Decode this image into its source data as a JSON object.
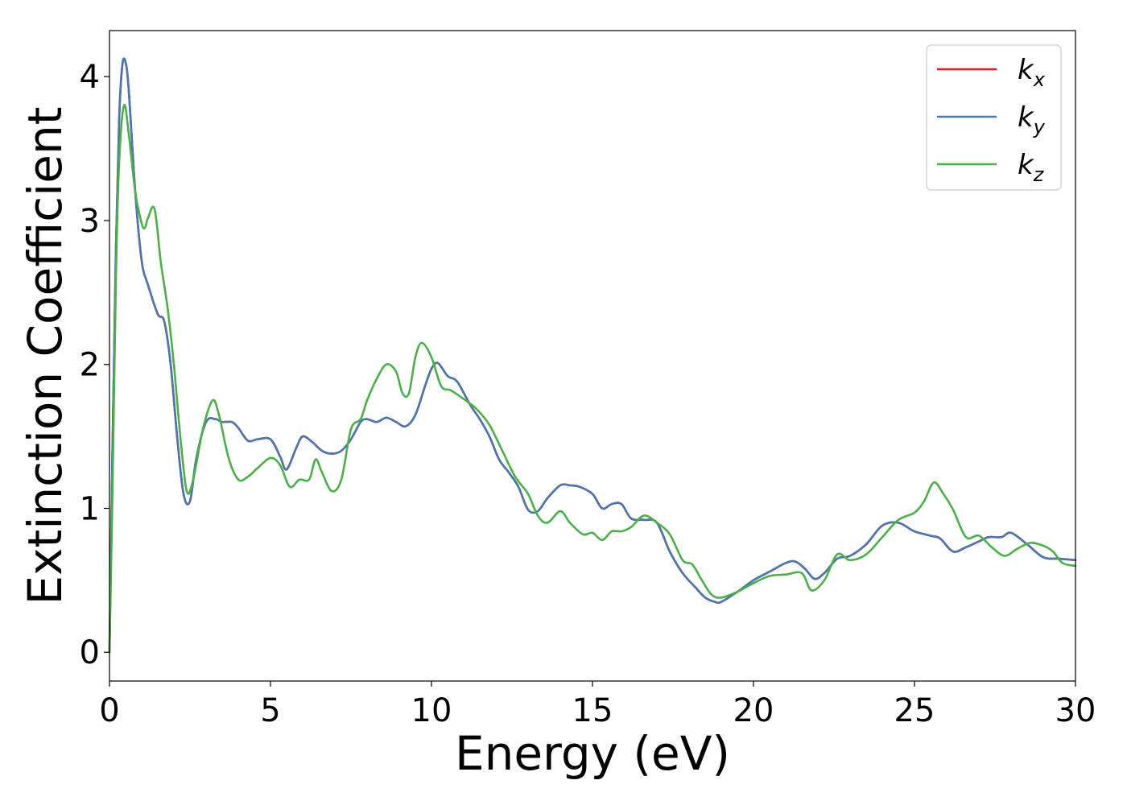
{
  "chart_data": {
    "type": "line",
    "xlabel": "Energy (eV)",
    "ylabel": "Extinction Coefficient",
    "xlim": [
      0,
      30
    ],
    "ylim": [
      -0.2,
      4.32
    ],
    "x_ticks": [
      0,
      5,
      10,
      15,
      20,
      25,
      30
    ],
    "y_ticks": [
      0,
      1,
      2,
      3,
      4
    ],
    "legend_position": "top-right",
    "grid": false,
    "series": [
      {
        "name": "k_x",
        "name_base": "k",
        "name_sub": "x",
        "color": "#e41a1c",
        "x": [
          0,
          0.1,
          0.2,
          0.3,
          0.4,
          0.5,
          0.6,
          0.8,
          1.0,
          1.2,
          1.5,
          1.7,
          1.9,
          2.1,
          2.3,
          2.5,
          2.7,
          3.0,
          3.3,
          3.5,
          3.8,
          4.0,
          4.3,
          4.6,
          5.0,
          5.3,
          5.5,
          5.8,
          6.0,
          6.3,
          6.6,
          6.9,
          7.2,
          7.5,
          7.8,
          8.0,
          8.3,
          8.6,
          8.9,
          9.2,
          9.5,
          9.8,
          10.0,
          10.2,
          10.5,
          10.8,
          11.2,
          11.5,
          11.8,
          12.1,
          12.4,
          12.7,
          13.0,
          13.3,
          13.6,
          14.0,
          14.3,
          14.6,
          15.0,
          15.3,
          15.6,
          15.9,
          16.2,
          16.6,
          17.0,
          17.4,
          17.8,
          18.2,
          18.5,
          18.8,
          19.0,
          19.5,
          20.0,
          20.5,
          21.0,
          21.3,
          21.6,
          21.9,
          22.2,
          22.6,
          23.0,
          23.5,
          24.0,
          24.5,
          25.0,
          25.5,
          25.8,
          26.2,
          26.6,
          27.0,
          27.3,
          27.7,
          28.0,
          28.5,
          29.0,
          29.5,
          30.0
        ],
        "y": [
          0,
          1.5,
          2.8,
          3.7,
          4.08,
          4.1,
          3.9,
          3.2,
          2.72,
          2.55,
          2.35,
          2.3,
          2.0,
          1.5,
          1.1,
          1.05,
          1.35,
          1.6,
          1.62,
          1.6,
          1.6,
          1.56,
          1.47,
          1.48,
          1.48,
          1.36,
          1.27,
          1.42,
          1.5,
          1.46,
          1.4,
          1.38,
          1.4,
          1.48,
          1.6,
          1.62,
          1.6,
          1.63,
          1.6,
          1.57,
          1.65,
          1.85,
          1.97,
          2.01,
          1.92,
          1.88,
          1.72,
          1.62,
          1.5,
          1.34,
          1.25,
          1.15,
          0.99,
          0.98,
          1.07,
          1.16,
          1.16,
          1.15,
          1.1,
          1.0,
          1.03,
          1.03,
          0.93,
          0.92,
          0.9,
          0.7,
          0.55,
          0.45,
          0.38,
          0.35,
          0.35,
          0.42,
          0.5,
          0.56,
          0.62,
          0.63,
          0.58,
          0.51,
          0.55,
          0.65,
          0.67,
          0.75,
          0.88,
          0.9,
          0.84,
          0.81,
          0.79,
          0.7,
          0.73,
          0.77,
          0.8,
          0.8,
          0.83,
          0.75,
          0.66,
          0.65,
          0.64
        ]
      },
      {
        "name": "k_y",
        "name_base": "k",
        "name_sub": "y",
        "color": "#4a78ae",
        "x": [
          0,
          0.1,
          0.2,
          0.3,
          0.4,
          0.5,
          0.6,
          0.8,
          1.0,
          1.2,
          1.5,
          1.7,
          1.9,
          2.1,
          2.3,
          2.5,
          2.7,
          3.0,
          3.3,
          3.5,
          3.8,
          4.0,
          4.3,
          4.6,
          5.0,
          5.3,
          5.5,
          5.8,
          6.0,
          6.3,
          6.6,
          6.9,
          7.2,
          7.5,
          7.8,
          8.0,
          8.3,
          8.6,
          8.9,
          9.2,
          9.5,
          9.8,
          10.0,
          10.2,
          10.5,
          10.8,
          11.2,
          11.5,
          11.8,
          12.1,
          12.4,
          12.7,
          13.0,
          13.3,
          13.6,
          14.0,
          14.3,
          14.6,
          15.0,
          15.3,
          15.6,
          15.9,
          16.2,
          16.6,
          17.0,
          17.4,
          17.8,
          18.2,
          18.5,
          18.8,
          19.0,
          19.5,
          20.0,
          20.5,
          21.0,
          21.3,
          21.6,
          21.9,
          22.2,
          22.6,
          23.0,
          23.5,
          24.0,
          24.5,
          25.0,
          25.5,
          25.8,
          26.2,
          26.6,
          27.0,
          27.3,
          27.7,
          28.0,
          28.5,
          29.0,
          29.5,
          30.0
        ],
        "y": [
          0,
          1.5,
          2.8,
          3.7,
          4.08,
          4.1,
          3.9,
          3.2,
          2.72,
          2.55,
          2.35,
          2.3,
          2.0,
          1.5,
          1.1,
          1.05,
          1.35,
          1.6,
          1.62,
          1.6,
          1.6,
          1.56,
          1.47,
          1.48,
          1.48,
          1.36,
          1.27,
          1.42,
          1.5,
          1.46,
          1.4,
          1.38,
          1.4,
          1.48,
          1.6,
          1.62,
          1.6,
          1.63,
          1.6,
          1.57,
          1.65,
          1.85,
          1.97,
          2.01,
          1.92,
          1.88,
          1.72,
          1.62,
          1.5,
          1.34,
          1.25,
          1.15,
          0.99,
          0.98,
          1.07,
          1.16,
          1.16,
          1.15,
          1.1,
          1.0,
          1.03,
          1.03,
          0.93,
          0.92,
          0.9,
          0.7,
          0.55,
          0.45,
          0.38,
          0.35,
          0.35,
          0.42,
          0.5,
          0.56,
          0.62,
          0.63,
          0.58,
          0.51,
          0.55,
          0.65,
          0.67,
          0.75,
          0.88,
          0.9,
          0.84,
          0.81,
          0.79,
          0.7,
          0.73,
          0.77,
          0.8,
          0.8,
          0.83,
          0.75,
          0.66,
          0.65,
          0.64
        ]
      },
      {
        "name": "k_z",
        "name_base": "k",
        "name_sub": "z",
        "color": "#4daf4a",
        "x": [
          0,
          0.1,
          0.2,
          0.3,
          0.45,
          0.6,
          0.8,
          1.0,
          1.1,
          1.2,
          1.4,
          1.6,
          1.8,
          2.0,
          2.2,
          2.4,
          2.6,
          2.9,
          3.2,
          3.4,
          3.7,
          4.0,
          4.3,
          4.6,
          5.0,
          5.3,
          5.6,
          5.9,
          6.2,
          6.4,
          6.6,
          6.9,
          7.2,
          7.5,
          7.8,
          8.0,
          8.3,
          8.6,
          8.9,
          9.1,
          9.3,
          9.5,
          9.7,
          10.0,
          10.3,
          10.6,
          11.0,
          11.4,
          11.8,
          12.2,
          12.6,
          13.0,
          13.3,
          13.6,
          14.0,
          14.3,
          14.7,
          15.0,
          15.3,
          15.6,
          15.9,
          16.2,
          16.6,
          17.0,
          17.4,
          17.8,
          18.1,
          18.4,
          18.7,
          19.0,
          19.5,
          20.0,
          20.5,
          21.0,
          21.5,
          21.8,
          22.2,
          22.6,
          23.0,
          23.5,
          24.0,
          24.5,
          25.0,
          25.3,
          25.6,
          25.9,
          26.2,
          26.6,
          27.0,
          27.4,
          27.8,
          28.2,
          28.6,
          29.0,
          29.3,
          29.6,
          30.0
        ],
        "y": [
          0,
          1.2,
          2.6,
          3.4,
          3.8,
          3.6,
          3.2,
          2.98,
          2.95,
          3.02,
          3.08,
          2.7,
          2.4,
          2.0,
          1.5,
          1.12,
          1.2,
          1.55,
          1.75,
          1.65,
          1.35,
          1.2,
          1.22,
          1.28,
          1.35,
          1.3,
          1.15,
          1.2,
          1.2,
          1.34,
          1.25,
          1.12,
          1.2,
          1.55,
          1.62,
          1.75,
          1.9,
          2.0,
          1.95,
          1.8,
          1.8,
          2.05,
          2.15,
          2.05,
          1.85,
          1.82,
          1.76,
          1.69,
          1.58,
          1.4,
          1.22,
          1.1,
          0.95,
          0.9,
          0.98,
          0.9,
          0.82,
          0.83,
          0.78,
          0.84,
          0.84,
          0.87,
          0.95,
          0.9,
          0.82,
          0.64,
          0.61,
          0.5,
          0.4,
          0.38,
          0.42,
          0.48,
          0.53,
          0.54,
          0.55,
          0.43,
          0.5,
          0.68,
          0.64,
          0.68,
          0.8,
          0.92,
          0.97,
          1.05,
          1.18,
          1.1,
          0.99,
          0.8,
          0.81,
          0.73,
          0.67,
          0.72,
          0.76,
          0.74,
          0.7,
          0.62,
          0.6
        ]
      }
    ]
  }
}
